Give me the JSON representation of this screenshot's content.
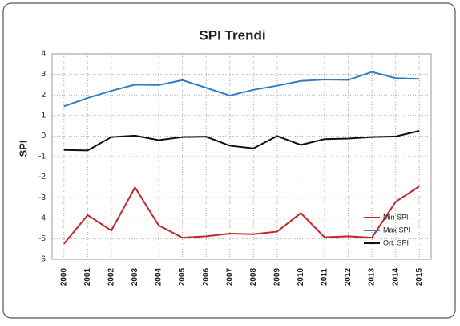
{
  "chart_data": {
    "type": "line",
    "title": "SPI Trendi",
    "y_label": "SPI",
    "categories": [
      "2000",
      "2001",
      "2002",
      "2003",
      "2004",
      "2005",
      "2006",
      "2007",
      "2008",
      "2009",
      "2010",
      "2011",
      "2012",
      "2013",
      "2014",
      "2015"
    ],
    "series": [
      {
        "name": "Min SPI",
        "color": "#c0272d",
        "values": [
          -5.25,
          -3.85,
          -4.6,
          -2.5,
          -4.35,
          -4.95,
          -4.88,
          -4.75,
          -4.78,
          -4.65,
          -3.75,
          -4.93,
          -4.88,
          -4.95,
          -3.2,
          -2.45
        ]
      },
      {
        "name": "Max SPI",
        "color": "#2e7fc0",
        "values": [
          1.45,
          1.85,
          2.2,
          2.5,
          2.48,
          2.72,
          2.35,
          1.97,
          2.25,
          2.45,
          2.68,
          2.75,
          2.73,
          3.12,
          2.82,
          2.78
        ]
      },
      {
        "name": "Ort. SPI",
        "color": "#111111",
        "values": [
          -0.68,
          -0.7,
          -0.05,
          0.02,
          -0.2,
          -0.05,
          -0.03,
          -0.47,
          -0.6,
          0.0,
          -0.43,
          -0.15,
          -0.12,
          -0.05,
          -0.02,
          0.25
        ]
      }
    ],
    "ylim": [
      -6,
      4
    ],
    "yticks": [
      -6,
      -5,
      -4,
      -3,
      -2,
      -1,
      0,
      1,
      2,
      3,
      4
    ],
    "grid": true,
    "legend": "bottom-right"
  }
}
